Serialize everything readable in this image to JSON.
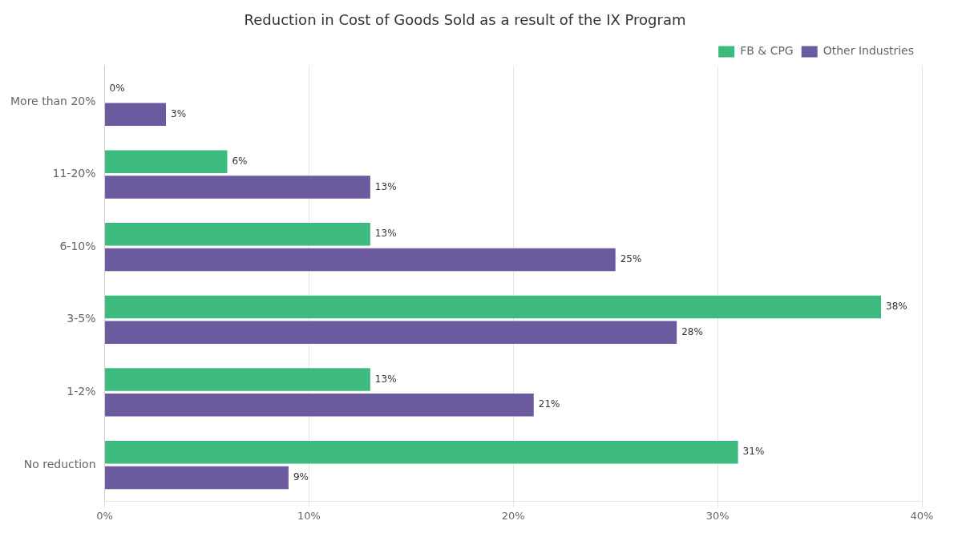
{
  "chart_data": {
    "type": "bar",
    "orientation": "horizontal",
    "title": "Reduction in Cost of Goods Sold as a result of the IX Program",
    "categories": [
      "More than 20%",
      "11-20%",
      "6-10%",
      "3-5%",
      "1-2%",
      "No reduction"
    ],
    "series": [
      {
        "name": "FB & CPG",
        "color": "#3dba7e",
        "values": [
          0,
          6,
          13,
          38,
          13,
          31
        ],
        "value_labels": [
          "0%",
          "6%",
          "13%",
          "38%",
          "13%",
          "31%"
        ]
      },
      {
        "name": "Other Industries",
        "color": "#6b5b9e",
        "values": [
          3,
          13,
          25,
          28,
          21,
          9
        ],
        "value_labels": [
          "3%",
          "13%",
          "25%",
          "28%",
          "21%",
          "9%"
        ]
      }
    ],
    "xlim": [
      0,
      40
    ],
    "xticks": [
      {
        "value": 0,
        "label": "0%"
      },
      {
        "value": 10,
        "label": "10%"
      },
      {
        "value": 20,
        "label": "20%"
      },
      {
        "value": 30,
        "label": "30%"
      },
      {
        "value": 40,
        "label": "40%"
      }
    ],
    "grid": true,
    "legend": "upper right",
    "data_labels": true
  }
}
